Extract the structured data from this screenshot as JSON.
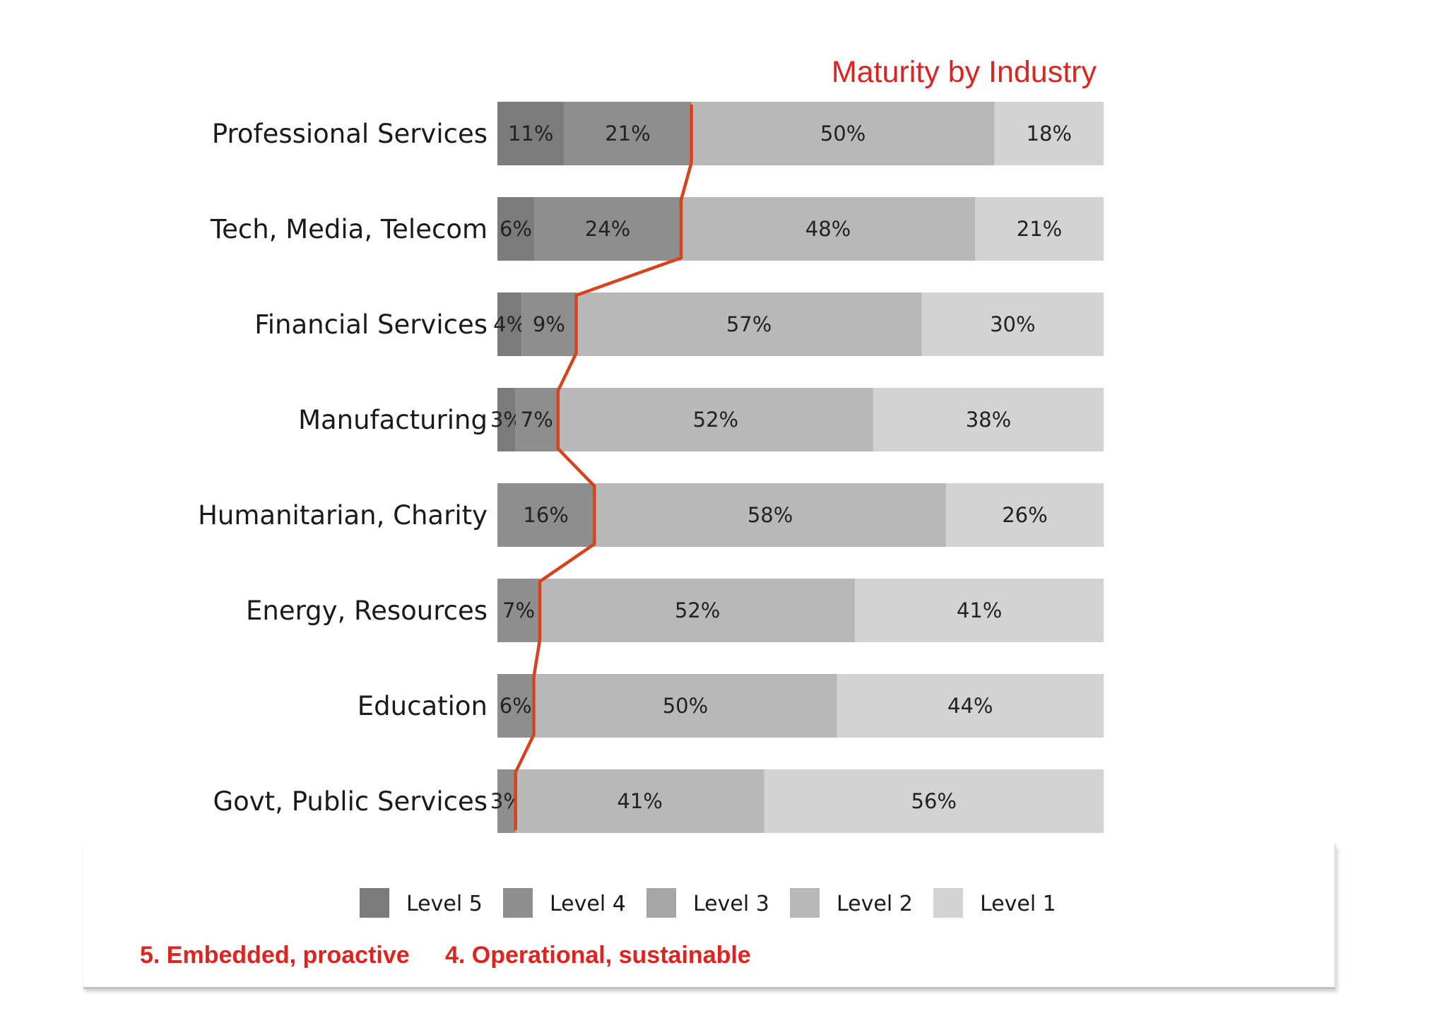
{
  "chart_data": {
    "type": "bar",
    "orientation": "horizontal",
    "stacked": true,
    "title": "Maturity by Industry",
    "categories": [
      "Professional Services",
      "Tech, Media, Telecom",
      "Financial Services",
      "Manufacturing",
      "Humanitarian, Charity",
      "Energy, Resources",
      "Education",
      "Govt, Public Services"
    ],
    "series": [
      {
        "name": "Level 5",
        "color": "#7b7b7b",
        "values": [
          11,
          6,
          4,
          3,
          0,
          0,
          0,
          0
        ],
        "labels": [
          "11%",
          "6%",
          "4%",
          "3%",
          "",
          "",
          "",
          ""
        ]
      },
      {
        "name": "Level 4",
        "color": "#8e8e8e",
        "values": [
          21,
          24,
          9,
          7,
          16,
          7,
          6,
          3
        ],
        "labels": [
          "21%",
          "24%",
          "9%",
          "7%",
          "16%",
          "7%",
          "6%",
          "3%"
        ]
      },
      {
        "name": "Level 3",
        "color": "#a6a6a7",
        "values": [
          0,
          0,
          0,
          0,
          0,
          0,
          0,
          0
        ],
        "labels": [
          "",
          "",
          "",
          "",
          "",
          "",
          "",
          ""
        ]
      },
      {
        "name": "Level 2",
        "color": "#b8b8b9",
        "values": [
          50,
          48,
          57,
          52,
          58,
          52,
          50,
          41
        ],
        "labels": [
          "50%",
          "48%",
          "57%",
          "52%",
          "58%",
          "52%",
          "50%",
          "41%"
        ]
      },
      {
        "name": "Level 1",
        "color": "#d3d3d4",
        "values": [
          18,
          21,
          30,
          38,
          26,
          41,
          44,
          56
        ],
        "labels": [
          "18%",
          "21%",
          "30%",
          "38%",
          "26%",
          "41%",
          "44%",
          "56%"
        ]
      }
    ],
    "xlim": [
      0,
      100
    ],
    "grid": false,
    "legend": "bottom",
    "annotation_line": {
      "color": "#d8431d",
      "note": "boundary between Level 4+ and lower levels"
    },
    "footnotes": [
      "5. Embedded, proactive",
      "4. Operational, sustainable"
    ]
  }
}
